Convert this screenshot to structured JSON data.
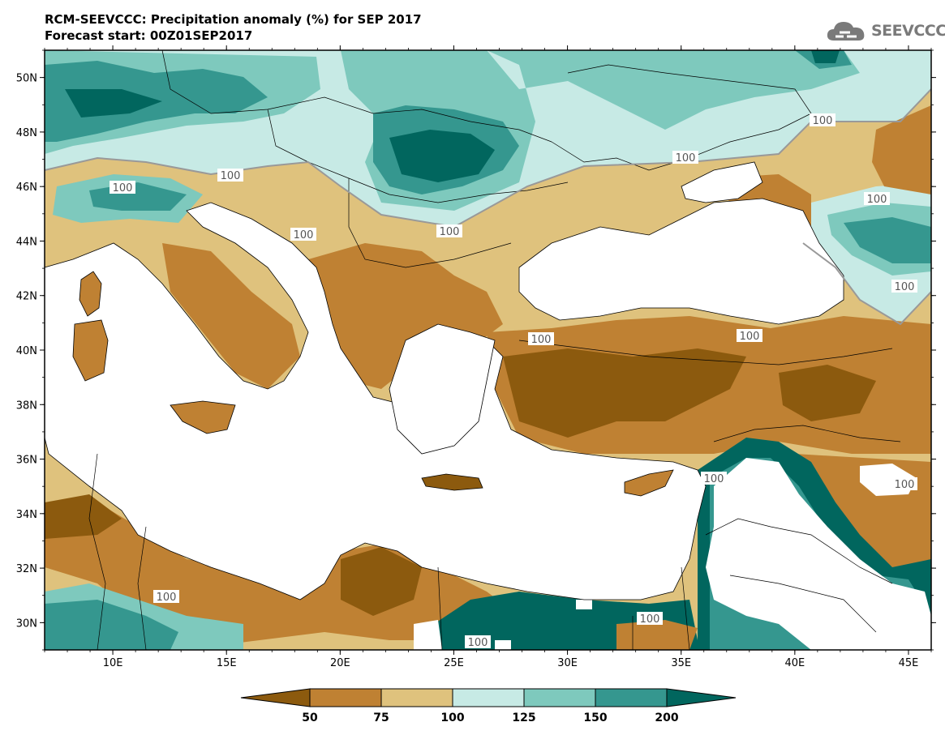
{
  "title": {
    "line1": "RCM-SEEVCCC: Precipitation anomaly (%) for SEP 2017",
    "line2": "Forecast start: 00Z01SEP2017"
  },
  "logo": {
    "icon": "cloud-icon",
    "text": "SEEVCCC"
  },
  "map_data": {
    "type": "filled-contour-map",
    "variable": "Precipitation anomaly (%)",
    "lon_range": [
      7,
      46
    ],
    "lat_range": [
      29,
      51
    ],
    "lon_ticks": [
      "10E",
      "15E",
      "20E",
      "25E",
      "30E",
      "35E",
      "40E",
      "45E"
    ],
    "lat_ticks": [
      "50N",
      "48N",
      "46N",
      "44N",
      "42N",
      "40N",
      "38N",
      "36N",
      "34N",
      "32N",
      "30N"
    ],
    "contour_label": "100",
    "legend": {
      "levels": [
        "50",
        "75",
        "100",
        "125",
        "150",
        "200"
      ],
      "colors": [
        "#8c5a0e",
        "#bf8133",
        "#dfc27d",
        "#c7eae5",
        "#7ec9bd",
        "#35978f",
        "#01665e"
      ]
    }
  }
}
